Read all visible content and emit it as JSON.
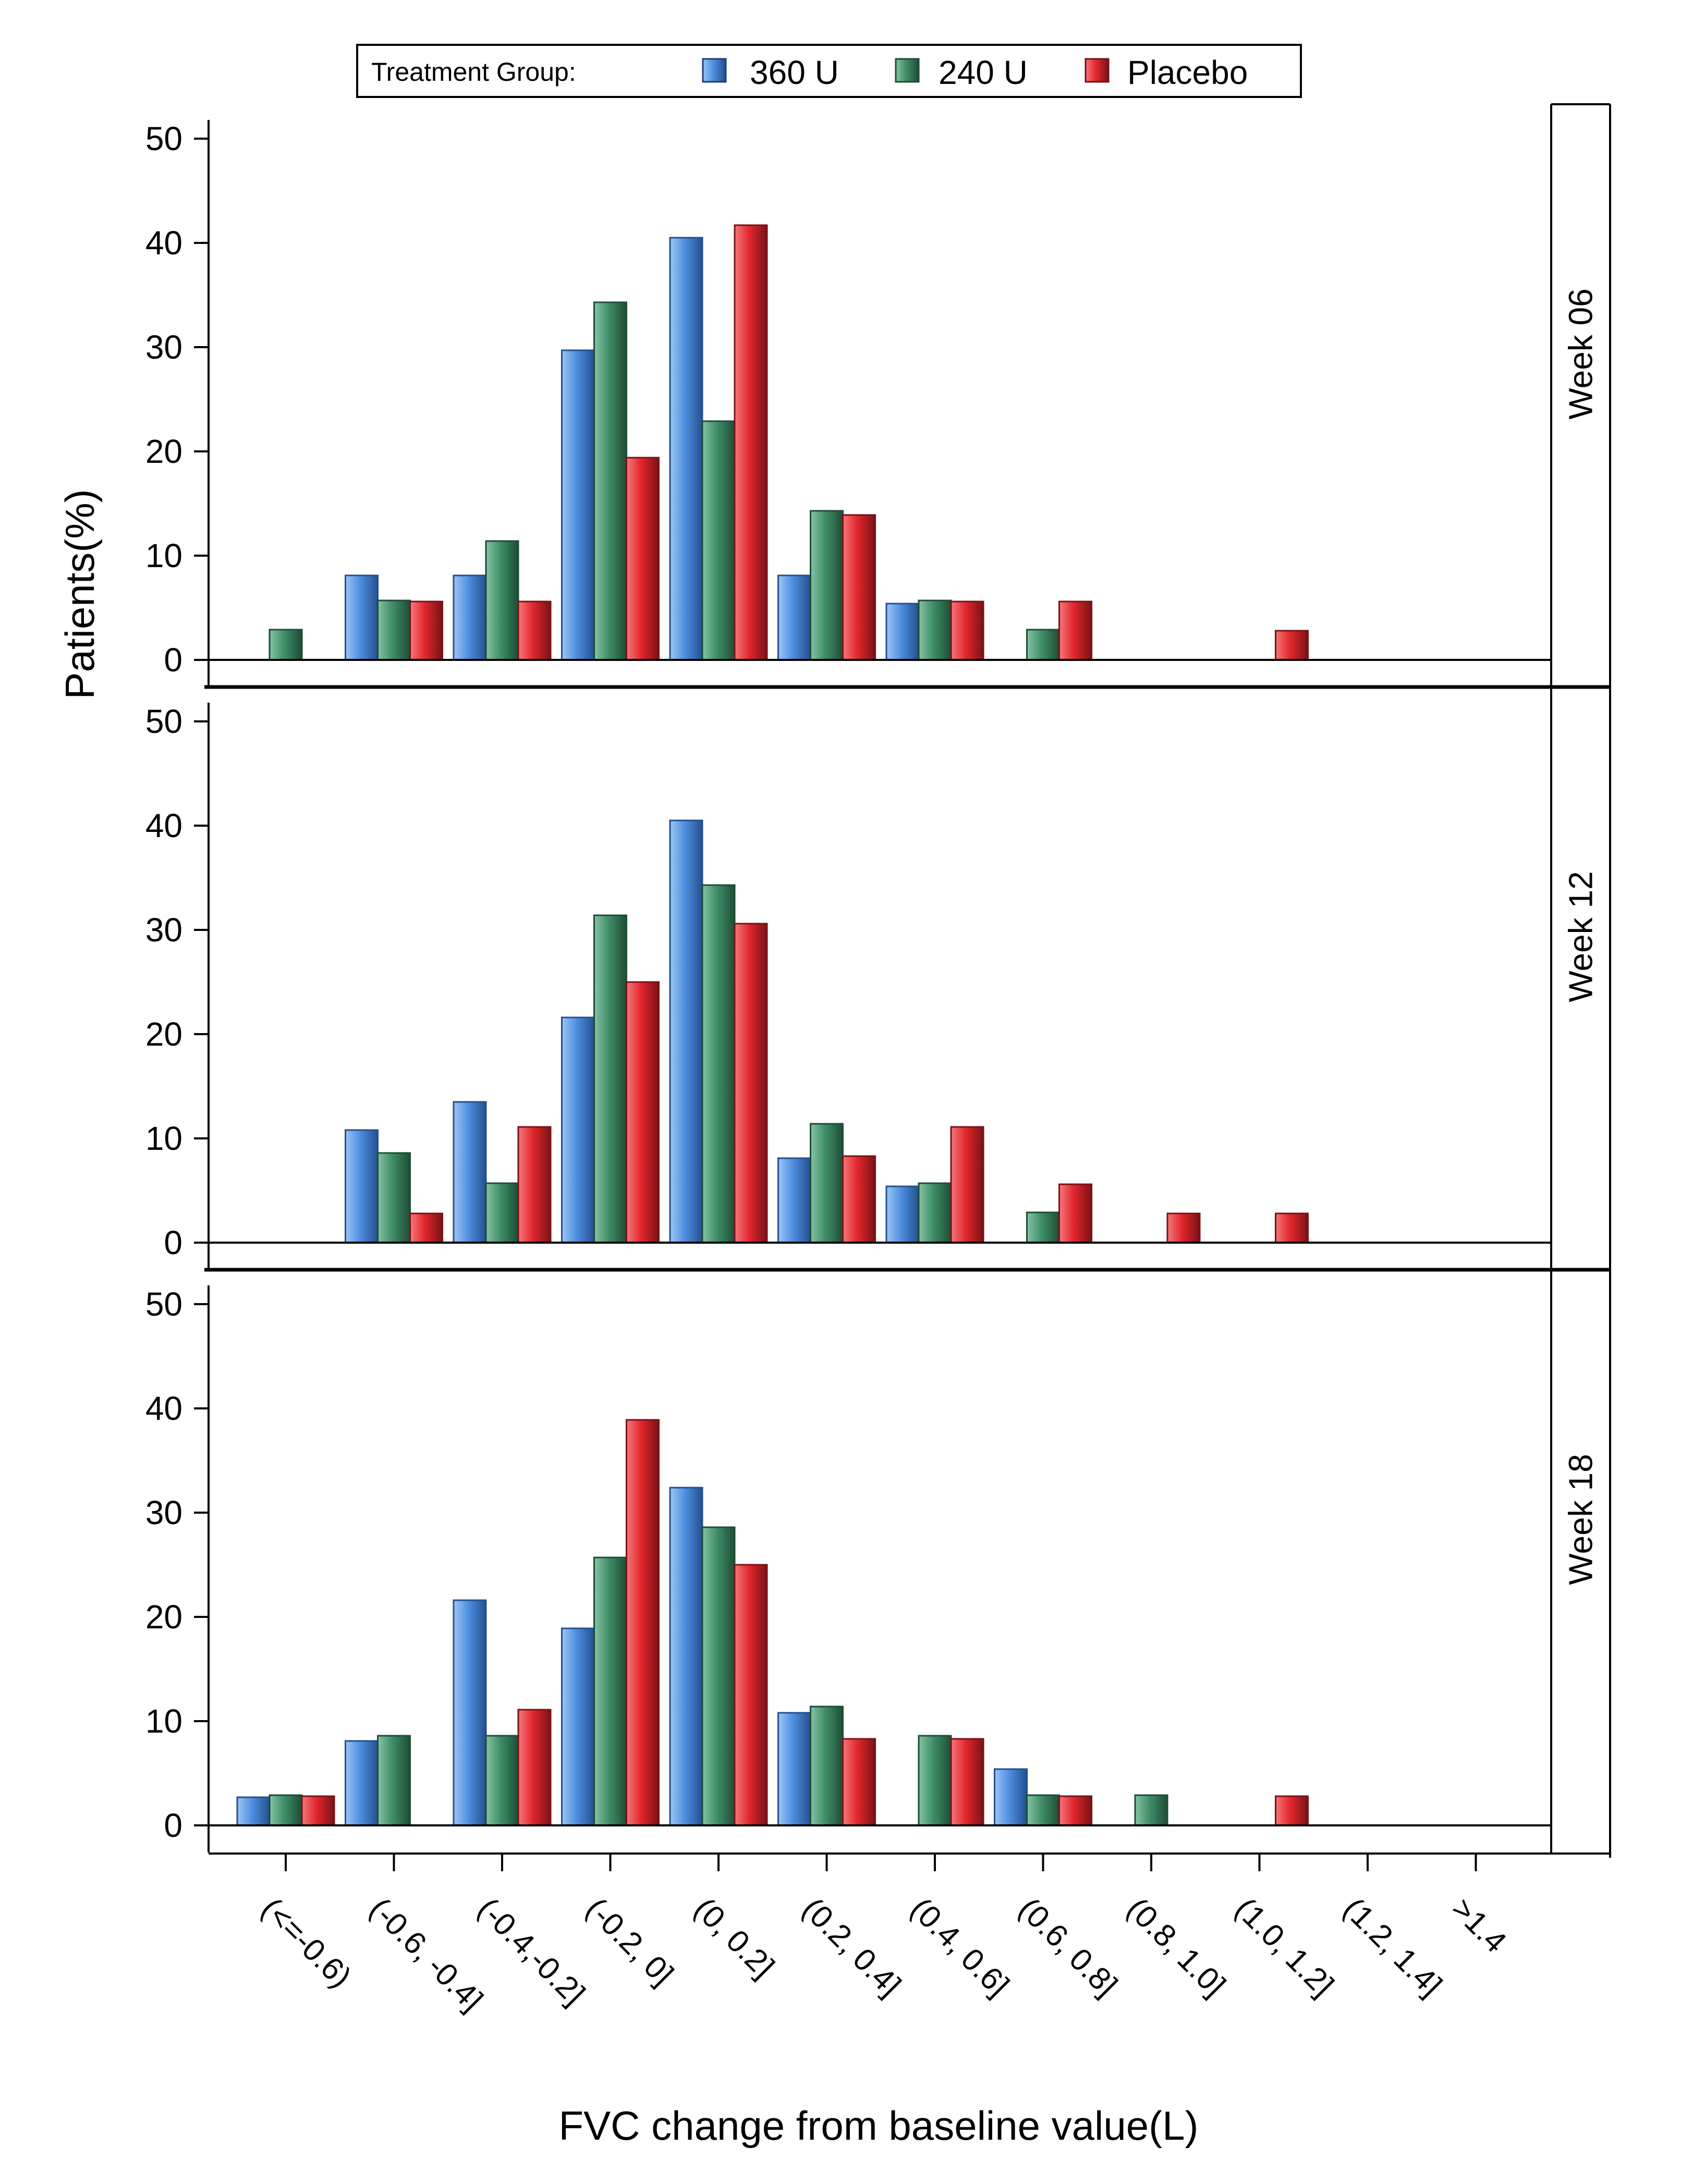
{
  "chart_data": {
    "type": "bar",
    "ylabel": "Patients(%)",
    "xlabel": "FVC change from baseline value(L)",
    "ylim": [
      0,
      50
    ],
    "yticks": [
      0,
      10,
      20,
      30,
      40,
      50
    ],
    "categories": [
      "(<=-0.6)",
      "(-0.6, -0.4]",
      "(-0.4,-0.2]",
      "(-0.2, 0]",
      "(0, 0.2]",
      "(0.2, 0.4]",
      "(0.4, 0.6]",
      "(0.6, 0.8]",
      "(0.8, 1.0]",
      "(1.0, 1.2]",
      "(1.2, 1.4]",
      ">1.4"
    ],
    "legend": {
      "title": "Treatment Group:",
      "position": "top"
    },
    "series_meta": [
      {
        "name": "360 U",
        "color": "#4f8fe0"
      },
      {
        "name": "240 U",
        "color": "#3f8e68"
      },
      {
        "name": "Placebo",
        "color": "#e2262d"
      }
    ],
    "panels": [
      {
        "label": "Week 06",
        "series": [
          {
            "name": "360 U",
            "values": [
              0,
              8.1,
              8.1,
              29.7,
              40.5,
              8.1,
              5.4,
              0,
              0,
              0,
              0,
              0
            ]
          },
          {
            "name": "240 U",
            "values": [
              2.9,
              5.7,
              11.4,
              34.3,
              22.9,
              14.3,
              5.7,
              2.9,
              0,
              0,
              0,
              0
            ]
          },
          {
            "name": "Placebo",
            "values": [
              0,
              5.6,
              5.6,
              19.4,
              41.7,
              13.9,
              5.6,
              5.6,
              0,
              2.8,
              0,
              0
            ]
          }
        ]
      },
      {
        "label": "Week 12",
        "series": [
          {
            "name": "360 U",
            "values": [
              0,
              10.8,
              13.5,
              21.6,
              40.5,
              8.1,
              5.4,
              0,
              0,
              0,
              0,
              0
            ]
          },
          {
            "name": "240 U",
            "values": [
              0,
              8.6,
              5.7,
              31.4,
              34.3,
              11.4,
              5.7,
              2.9,
              0,
              0,
              0,
              0
            ]
          },
          {
            "name": "Placebo",
            "values": [
              0,
              2.8,
              11.1,
              25.0,
              30.6,
              8.3,
              11.1,
              5.6,
              2.8,
              2.8,
              0,
              0
            ]
          }
        ]
      },
      {
        "label": "Week 18",
        "series": [
          {
            "name": "360 U",
            "values": [
              2.7,
              8.1,
              21.6,
              18.9,
              32.4,
              10.8,
              0,
              5.4,
              0,
              0,
              0,
              0
            ]
          },
          {
            "name": "240 U",
            "values": [
              2.9,
              8.6,
              8.6,
              25.7,
              28.6,
              11.4,
              8.6,
              2.9,
              2.9,
              0,
              0,
              0
            ]
          },
          {
            "name": "Placebo",
            "values": [
              2.8,
              0,
              11.1,
              38.9,
              25.0,
              8.3,
              8.3,
              2.8,
              0,
              2.8,
              0,
              0
            ]
          }
        ]
      }
    ]
  }
}
